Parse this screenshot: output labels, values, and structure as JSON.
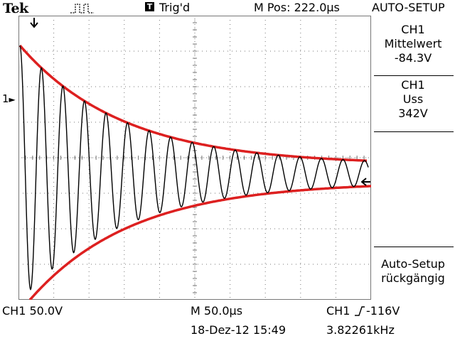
{
  "header": {
    "brand": "Tek",
    "trigger_symbol": "T",
    "trigger_status": "Trig'd",
    "position": "M Pos: 222.0µs",
    "menu_title": "AUTO-SETUP",
    "acq_icon": "acquisition-pulse-icon"
  },
  "side_menu": {
    "box1": {
      "line1": "CH1",
      "line2": "Mittelwert",
      "line3": "-84.3V"
    },
    "box2": {
      "line1": "CH1",
      "line2": "Uss",
      "line3": "342V"
    },
    "box3": {
      "line1": "Auto-Setup",
      "line2": "rückgängig"
    }
  },
  "screen": {
    "ch1_marker": "1",
    "trigger_pos_icon": "trigger-position-arrow-icon",
    "trigger_level_icon": "trigger-level-arrow-icon"
  },
  "footer": {
    "ch1_scale": "CH1  50.0V",
    "time_base": "M 50.0µs",
    "trigger_source": "CH1",
    "trigger_slope_icon": "rising-edge-icon",
    "trigger_level": "-116V",
    "date_time": "18-Dez-12 15:49",
    "frequency": "3.82261kHz"
  },
  "colors": {
    "waveform": "#000000",
    "envelope": "#dd2020",
    "grid": "#777777",
    "background": "#ffffff"
  }
}
